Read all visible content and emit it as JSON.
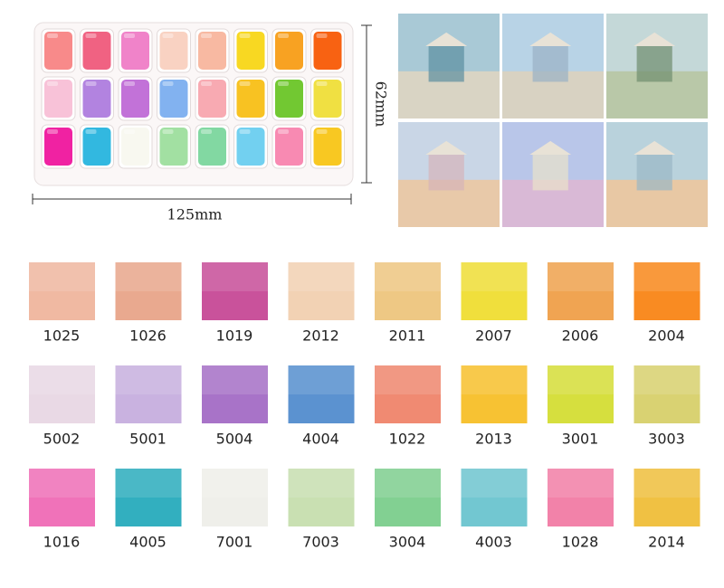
{
  "dimensions": {
    "width_label": "125mm",
    "height_label": "62mm"
  },
  "swatches": [
    [
      {
        "code": "1025",
        "color": "#f0b9a2"
      },
      {
        "code": "1026",
        "color": "#e9a98f"
      },
      {
        "code": "1019",
        "color": "#c9529b"
      },
      {
        "code": "2012",
        "color": "#f2d2b4"
      },
      {
        "code": "2011",
        "color": "#eec884"
      },
      {
        "code": "2007",
        "color": "#f0df3c"
      },
      {
        "code": "2006",
        "color": "#f0a452"
      },
      {
        "code": "2004",
        "color": "#f98b22"
      }
    ],
    [
      {
        "code": "5002",
        "color": "#e9d9e5"
      },
      {
        "code": "5001",
        "color": "#c9b2e0"
      },
      {
        "code": "5004",
        "color": "#a873c8"
      },
      {
        "code": "4004",
        "color": "#5b92d0"
      },
      {
        "code": "1022",
        "color": "#f08a72"
      },
      {
        "code": "2013",
        "color": "#f7c233"
      },
      {
        "code": "3001",
        "color": "#d6df3e"
      },
      {
        "code": "3003",
        "color": "#d9d272"
      }
    ],
    [
      {
        "code": "1016",
        "color": "#f072b9"
      },
      {
        "code": "4005",
        "color": "#32afbf"
      },
      {
        "code": "7001",
        "color": "#efefea"
      },
      {
        "code": "7003",
        "color": "#c9e0b2"
      },
      {
        "code": "3004",
        "color": "#82d092"
      },
      {
        "code": "4003",
        "color": "#72c7d1"
      },
      {
        "code": "1028",
        "color": "#f282a9"
      },
      {
        "code": "2014",
        "color": "#f0c143"
      }
    ]
  ]
}
